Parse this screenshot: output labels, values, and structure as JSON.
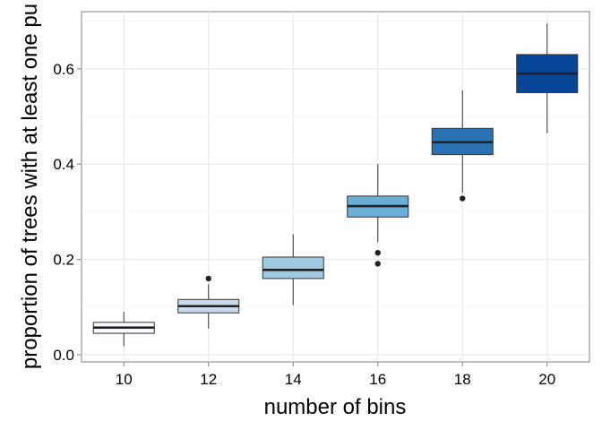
{
  "chart_data": {
    "type": "boxplot",
    "xlabel": "number of bins",
    "ylabel": "proportion of trees with at least one pu",
    "categories": [
      "10",
      "12",
      "14",
      "16",
      "18",
      "20"
    ],
    "yticks": [
      "0.0",
      "0.2",
      "0.4",
      "0.6"
    ],
    "ytick_values": [
      0.0,
      0.2,
      0.4,
      0.6
    ],
    "ylim": [
      -0.015,
      0.72
    ],
    "grid": true,
    "legend": "none",
    "boxes": [
      {
        "category": "10",
        "min": 0.018,
        "q1": 0.045,
        "median": 0.057,
        "q3": 0.068,
        "max": 0.09,
        "outliers": [],
        "color": "#f7fbff"
      },
      {
        "category": "12",
        "min": 0.055,
        "q1": 0.088,
        "median": 0.102,
        "q3": 0.116,
        "max": 0.148,
        "outliers": [
          0.16
        ],
        "color": "#c6dbef"
      },
      {
        "category": "14",
        "min": 0.104,
        "q1": 0.16,
        "median": 0.178,
        "q3": 0.205,
        "max": 0.253,
        "outliers": [],
        "color": "#9ecae1"
      },
      {
        "category": "16",
        "min": 0.236,
        "q1": 0.289,
        "median": 0.312,
        "q3": 0.333,
        "max": 0.4,
        "outliers": [
          0.214,
          0.191
        ],
        "color": "#6baed6"
      },
      {
        "category": "18",
        "min": 0.34,
        "q1": 0.42,
        "median": 0.446,
        "q3": 0.475,
        "max": 0.555,
        "outliers": [
          0.328
        ],
        "color": "#2b72b5"
      },
      {
        "category": "20",
        "min": 0.465,
        "q1": 0.55,
        "median": 0.59,
        "q3": 0.63,
        "max": 0.695,
        "outliers": [],
        "color": "#08469a"
      }
    ]
  }
}
